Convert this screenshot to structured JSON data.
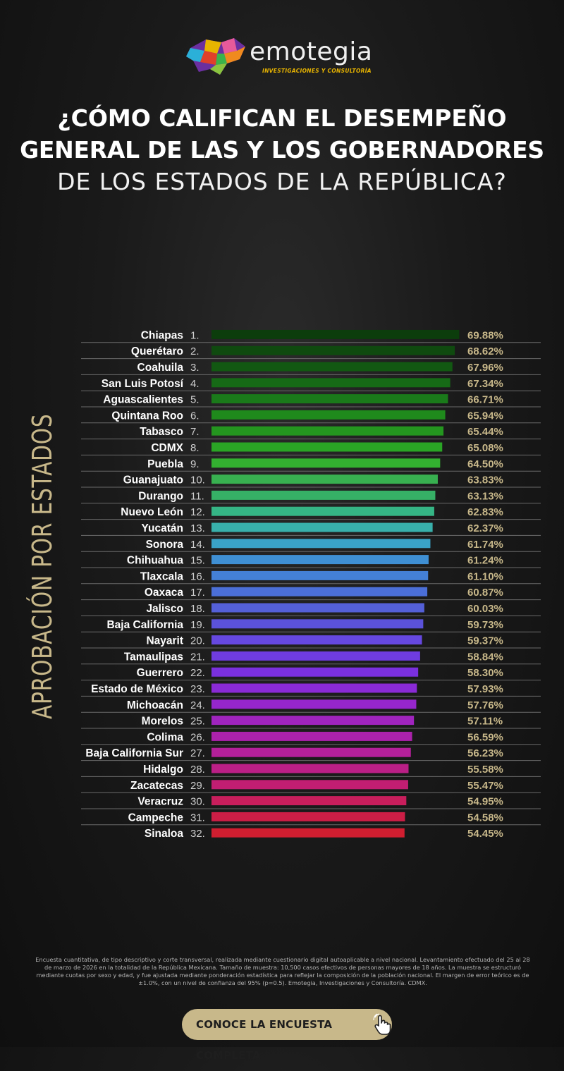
{
  "brand": {
    "name": "emotegia",
    "tagline": "INVESTIGACIONES Y CONSULTORÍA"
  },
  "title": {
    "line1": "¿CÓMO CALIFICAN EL DESEMPEÑO",
    "line2": "GENERAL DE LAS Y LOS GOBERNADORES",
    "line3": "DE LOS ESTADOS DE LA REPÚBLICA?"
  },
  "side_label": "APROBACIÓN POR ESTADOS",
  "colors": {
    "accent": "#c8b88a",
    "background": "#1a1a1a"
  },
  "chart_data": {
    "type": "bar",
    "orientation": "horizontal",
    "categories": [
      "Chiapas",
      "Querétaro",
      "Coahuila",
      "San Luis Potosí",
      "Aguascalientes",
      "Quintana Roo",
      "Tabasco",
      "CDMX",
      "Puebla",
      "Guanajuato",
      "Durango",
      "Nuevo León",
      "Yucatán",
      "Sonora",
      "Chihuahua",
      "Tlaxcala",
      "Oaxaca",
      "Jalisco",
      "Baja California",
      "Nayarit",
      "Tamaulipas",
      "Guerrero",
      "Estado de México",
      "Michoacán",
      "Morelos",
      "Colima",
      "Baja California Sur",
      "Hidalgo",
      "Zacatecas",
      "Veracruz",
      "Campeche",
      "Sinaloa"
    ],
    "ranks": [
      "1.",
      "2.",
      "3.",
      "4.",
      "5.",
      "6.",
      "7.",
      "8.",
      "9.",
      "10.",
      "11.",
      "12.",
      "13.",
      "14.",
      "15.",
      "16.",
      "17.",
      "18.",
      "19.",
      "20.",
      "21.",
      "22.",
      "23.",
      "24.",
      "25.",
      "26.",
      "27.",
      "28.",
      "29.",
      "30.",
      "31.",
      "32."
    ],
    "values": [
      69.88,
      68.62,
      67.96,
      67.34,
      66.71,
      65.94,
      65.44,
      65.08,
      64.5,
      63.83,
      63.13,
      62.83,
      62.37,
      61.74,
      61.24,
      61.1,
      60.87,
      60.03,
      59.73,
      59.37,
      58.84,
      58.3,
      57.93,
      57.76,
      57.11,
      56.59,
      56.23,
      55.58,
      55.47,
      54.95,
      54.58,
      54.45
    ],
    "value_labels": [
      "69.88%",
      "68.62%",
      "67.96%",
      "67.34%",
      "66.71%",
      "65.94%",
      "65.44%",
      "65.08%",
      "64.50%",
      "63.83%",
      "63.13%",
      "62.83%",
      "62.37%",
      "61.74%",
      "61.24%",
      "61.10%",
      "60.87%",
      "60.03%",
      "59.73%",
      "59.37%",
      "58.84%",
      "58.30%",
      "57.93%",
      "57.76%",
      "57.11%",
      "56.59%",
      "56.23%",
      "55.58%",
      "55.47%",
      "54.95%",
      "54.58%",
      "54.45%"
    ],
    "bar_colors": [
      "#0c3d0c",
      "#0f4a0f",
      "#125812",
      "#166a16",
      "#1a7a1a",
      "#1f8a1c",
      "#24961f",
      "#2aa525",
      "#33b030",
      "#38b050",
      "#36b066",
      "#35b585",
      "#38b0ab",
      "#3aa3c8",
      "#3f8fd3",
      "#4480d6",
      "#4b6fd8",
      "#5460d8",
      "#5b52da",
      "#6648e0",
      "#6f3ce0",
      "#7a30de",
      "#8a2ad6",
      "#9626cc",
      "#a024be",
      "#ab22ac",
      "#b4209a",
      "#bb1f86",
      "#c21e72",
      "#c81e5c",
      "#cc1e46",
      "#d01e30"
    ],
    "xlim": [
      0,
      70
    ]
  },
  "footnote": "Encuesta cuantitativa, de tipo descriptivo y corte transversal, realizada mediante cuestionario digital autoaplicable a nivel nacional. Levantamiento efectuado del 25 al 28 de marzo de 2026 en la totalidad de la República Mexicana. Tamaño de muestra: 10,500 casos efectivos de personas mayores de 18 años. La muestra se estructuró mediante cuotas por sexo y edad, y fue ajustada mediante ponderación estadística para reflejar la composición de la población nacional. El margen de error teórico es de ±1.0%, con un nivel de confianza del 95% (p=0.5). Emotegia, Investigaciones y Consultoría. CDMX.",
  "cta": {
    "label": "CONOCE LA ENCUESTA COMPLETA",
    "icon": "pointer-hand-icon"
  }
}
